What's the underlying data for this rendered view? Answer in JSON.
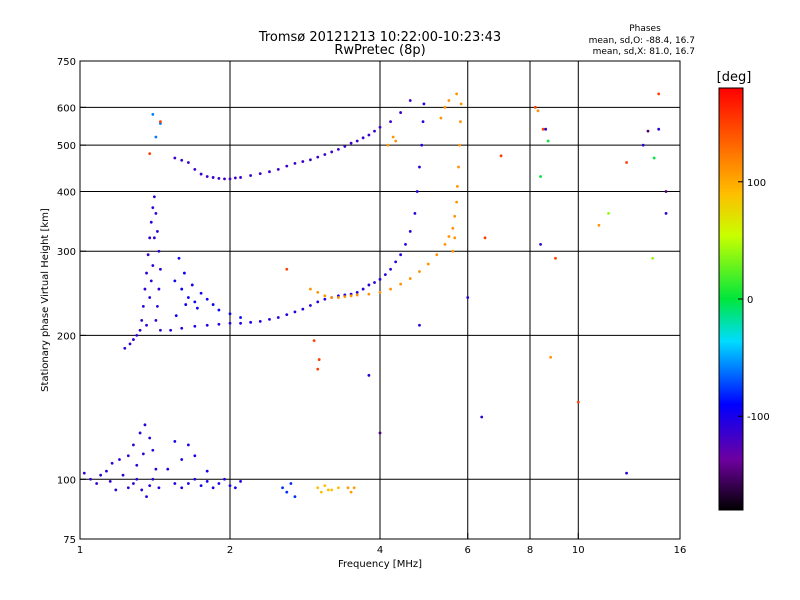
{
  "chart_data": {
    "type": "scatter",
    "title": "Tromsø 20121213 10:22:00-10:23:43",
    "subtitle": "RwPretec (8p)",
    "xlabel": "Frequency [MHz]",
    "ylabel": "Stationary phase Virtual Height [km]",
    "x_scale": "log",
    "y_scale": "log",
    "xlim": [
      1,
      16
    ],
    "ylim": [
      75,
      750
    ],
    "x_ticks": [
      1,
      2,
      4,
      6,
      8,
      10,
      16
    ],
    "x_tick_labels": [
      "1",
      "2",
      "4",
      "6",
      "8",
      "10",
      "16"
    ],
    "y_ticks": [
      75,
      100,
      200,
      300,
      400,
      500,
      600,
      750
    ],
    "y_tick_labels": [
      "75",
      "100",
      "200",
      "300",
      "400",
      "500",
      "600",
      "750"
    ],
    "grid": true,
    "legend": {
      "heading": "Phases",
      "line_o": "mean, sd,O: -88.4, 16.7",
      "line_x": "mean, sd,X:  81.0, 16.7"
    },
    "colorbar": {
      "label": "[deg]",
      "range": [
        -180,
        180
      ],
      "ticks": [
        -100,
        0,
        100
      ],
      "tick_labels": [
        "-100",
        "0",
        "100"
      ]
    },
    "series": [
      {
        "points": [
          [
            1.02,
            103
          ],
          [
            1.05,
            100
          ],
          [
            1.08,
            98
          ],
          [
            1.1,
            102
          ],
          [
            1.13,
            104
          ],
          [
            1.16,
            108
          ],
          [
            1.2,
            110
          ],
          [
            1.25,
            112
          ],
          [
            1.28,
            118
          ],
          [
            1.32,
            125
          ],
          [
            1.35,
            130
          ],
          [
            1.38,
            122
          ],
          [
            1.4,
            115
          ],
          [
            1.42,
            105
          ],
          [
            1.44,
            96
          ],
          [
            1.28,
            98
          ],
          [
            1.33,
            95
          ],
          [
            1.36,
            92
          ],
          [
            1.3,
            100
          ],
          [
            1.25,
            96
          ],
          [
            1.18,
            95
          ],
          [
            1.22,
            102
          ],
          [
            1.15,
            99
          ],
          [
            1.4,
            100
          ],
          [
            1.38,
            97
          ],
          [
            1.3,
            107
          ],
          [
            1.34,
            113
          ]
        ],
        "phase": -110
      },
      {
        "points": [
          [
            1.23,
            188
          ],
          [
            1.26,
            192
          ],
          [
            1.28,
            196
          ],
          [
            1.3,
            200
          ],
          [
            1.32,
            205
          ],
          [
            1.33,
            215
          ],
          [
            1.34,
            230
          ],
          [
            1.35,
            250
          ],
          [
            1.36,
            270
          ],
          [
            1.37,
            295
          ],
          [
            1.38,
            320
          ],
          [
            1.39,
            345
          ],
          [
            1.4,
            370
          ],
          [
            1.41,
            390
          ],
          [
            1.42,
            360
          ],
          [
            1.43,
            330
          ],
          [
            1.44,
            300
          ],
          [
            1.45,
            275
          ],
          [
            1.44,
            250
          ],
          [
            1.43,
            230
          ],
          [
            1.42,
            215
          ],
          [
            1.45,
            205
          ],
          [
            1.38,
            240
          ],
          [
            1.36,
            210
          ],
          [
            1.4,
            280
          ],
          [
            1.41,
            320
          ],
          [
            1.39,
            260
          ]
        ],
        "phase": -110
      },
      {
        "points": [
          [
            1.55,
            470
          ],
          [
            1.6,
            465
          ],
          [
            1.65,
            460
          ],
          [
            1.7,
            445
          ],
          [
            1.75,
            435
          ],
          [
            1.8,
            430
          ],
          [
            1.85,
            428
          ],
          [
            1.9,
            426
          ],
          [
            1.95,
            425
          ],
          [
            2.0,
            425
          ],
          [
            2.05,
            427
          ],
          [
            2.1,
            428
          ],
          [
            2.2,
            432
          ],
          [
            2.3,
            436
          ],
          [
            2.4,
            440
          ],
          [
            2.5,
            445
          ],
          [
            2.6,
            452
          ],
          [
            2.7,
            458
          ],
          [
            2.8,
            462
          ],
          [
            2.9,
            466
          ],
          [
            3.0,
            472
          ],
          [
            3.1,
            478
          ],
          [
            3.2,
            484
          ],
          [
            3.3,
            490
          ],
          [
            3.4,
            497
          ],
          [
            3.5,
            505
          ],
          [
            3.6,
            510
          ],
          [
            3.7,
            518
          ],
          [
            3.8,
            525
          ],
          [
            3.9,
            535
          ],
          [
            4.0,
            545
          ],
          [
            4.2,
            560
          ],
          [
            4.4,
            585
          ],
          [
            4.6,
            620
          ]
        ],
        "phase": -115
      },
      {
        "points": [
          [
            1.52,
            205
          ],
          [
            1.6,
            207
          ],
          [
            1.7,
            209
          ],
          [
            1.8,
            210
          ],
          [
            1.9,
            211
          ],
          [
            2.0,
            212
          ],
          [
            2.1,
            212
          ],
          [
            2.2,
            213
          ],
          [
            2.3,
            214
          ],
          [
            2.4,
            216
          ],
          [
            2.5,
            218
          ],
          [
            2.6,
            221
          ],
          [
            2.7,
            224
          ],
          [
            2.8,
            227
          ],
          [
            2.9,
            231
          ],
          [
            3.0,
            235
          ],
          [
            3.1,
            238
          ],
          [
            3.2,
            240
          ],
          [
            3.3,
            242
          ],
          [
            3.4,
            243
          ],
          [
            3.5,
            244
          ],
          [
            3.6,
            246
          ],
          [
            3.7,
            250
          ],
          [
            3.8,
            255
          ],
          [
            3.9,
            258
          ],
          [
            4.0,
            262
          ],
          [
            4.1,
            268
          ],
          [
            4.2,
            275
          ],
          [
            4.3,
            285
          ],
          [
            4.4,
            295
          ],
          [
            4.5,
            310
          ],
          [
            4.6,
            330
          ],
          [
            4.7,
            360
          ],
          [
            4.75,
            400
          ],
          [
            4.8,
            450
          ],
          [
            4.85,
            500
          ],
          [
            4.88,
            560
          ],
          [
            4.9,
            610
          ]
        ],
        "phase": -105
      },
      {
        "points": [
          [
            1.55,
            260
          ],
          [
            1.6,
            250
          ],
          [
            1.65,
            240
          ],
          [
            1.7,
            235
          ],
          [
            1.75,
            245
          ],
          [
            1.8,
            238
          ],
          [
            1.85,
            232
          ],
          [
            1.9,
            226
          ],
          [
            2.0,
            222
          ],
          [
            1.58,
            290
          ],
          [
            1.62,
            270
          ],
          [
            1.68,
            255
          ],
          [
            1.72,
            228
          ],
          [
            2.1,
            218
          ],
          [
            1.56,
            220
          ],
          [
            1.63,
            232
          ]
        ],
        "phase": -95
      },
      {
        "points": [
          [
            1.5,
            105
          ],
          [
            1.55,
            98
          ],
          [
            1.6,
            96
          ],
          [
            1.65,
            98
          ],
          [
            1.7,
            100
          ],
          [
            1.75,
            97
          ],
          [
            1.8,
            99
          ],
          [
            1.85,
            96
          ],
          [
            1.9,
            98
          ],
          [
            1.95,
            100
          ],
          [
            2.0,
            97
          ],
          [
            2.05,
            96
          ],
          [
            2.1,
            99
          ],
          [
            1.6,
            110
          ],
          [
            1.7,
            112
          ],
          [
            1.55,
            120
          ],
          [
            1.65,
            118
          ],
          [
            1.8,
            104
          ]
        ],
        "phase": -100
      },
      {
        "points": [
          [
            2.55,
            96
          ],
          [
            2.6,
            94
          ],
          [
            2.7,
            92
          ],
          [
            2.65,
            98
          ]
        ],
        "phase": -80
      },
      {
        "points": [
          [
            2.9,
            250
          ],
          [
            3.0,
            246
          ],
          [
            3.1,
            242
          ],
          [
            3.2,
            240
          ],
          [
            3.3,
            240
          ],
          [
            3.4,
            241
          ],
          [
            3.5,
            242
          ],
          [
            3.6,
            243
          ],
          [
            3.8,
            244
          ],
          [
            4.0,
            246
          ],
          [
            4.2,
            250
          ],
          [
            4.4,
            256
          ],
          [
            4.6,
            263
          ],
          [
            4.8,
            272
          ],
          [
            5.0,
            282
          ],
          [
            5.2,
            295
          ],
          [
            5.4,
            310
          ],
          [
            5.5,
            322
          ],
          [
            5.6,
            335
          ],
          [
            5.65,
            355
          ],
          [
            5.7,
            380
          ],
          [
            5.72,
            410
          ],
          [
            5.75,
            450
          ],
          [
            5.78,
            500
          ],
          [
            5.8,
            560
          ],
          [
            5.82,
            610
          ],
          [
            5.7,
            640
          ],
          [
            5.5,
            620
          ],
          [
            5.4,
            600
          ],
          [
            5.3,
            570
          ],
          [
            5.6,
            300
          ],
          [
            5.65,
            320
          ]
        ],
        "phase": 110
      },
      {
        "points": [
          [
            3.0,
            96
          ],
          [
            3.05,
            94
          ],
          [
            3.1,
            97
          ],
          [
            3.15,
            95
          ],
          [
            3.2,
            95
          ],
          [
            3.3,
            96
          ]
        ],
        "phase": 90
      },
      {
        "points": [
          [
            3.45,
            96
          ],
          [
            3.5,
            94
          ],
          [
            3.55,
            96
          ]
        ],
        "phase": 105
      },
      {
        "points": [
          [
            4.15,
            500
          ],
          [
            4.25,
            520
          ],
          [
            4.3,
            510
          ]
        ],
        "phase": 110
      },
      {
        "points": [
          [
            1.4,
            580
          ],
          [
            1.42,
            520
          ],
          [
            1.45,
            555
          ]
        ],
        "phase": -60
      },
      {
        "points": [
          [
            1.45,
            560
          ],
          [
            1.38,
            480
          ],
          [
            2.6,
            275
          ],
          [
            2.95,
            195
          ],
          [
            3.0,
            170
          ],
          [
            3.02,
            178
          ],
          [
            8.2,
            600
          ],
          [
            8.5,
            540
          ],
          [
            9.0,
            290
          ],
          [
            12.5,
            460
          ],
          [
            14.5,
            640
          ],
          [
            10.0,
            145
          ],
          [
            7.0,
            475
          ],
          [
            6.5,
            320
          ]
        ],
        "phase": 150
      },
      {
        "points": [
          [
            8.3,
            590
          ],
          [
            8.8,
            180
          ],
          [
            11,
            340
          ]
        ],
        "phase": 110
      },
      {
        "points": [
          [
            11.5,
            360
          ],
          [
            14.1,
            290
          ]
        ],
        "phase": 40
      },
      {
        "points": [
          [
            8.4,
            310
          ],
          [
            8.6,
            540
          ],
          [
            13.5,
            500
          ],
          [
            14.5,
            540
          ],
          [
            15.0,
            360
          ],
          [
            3.8,
            165
          ],
          [
            6.4,
            135
          ],
          [
            12.5,
            103
          ],
          [
            4.8,
            210
          ],
          [
            6.0,
            240
          ]
        ],
        "phase": -110
      },
      {
        "points": [
          [
            4.0,
            125
          ],
          [
            15.0,
            400
          ],
          [
            13.8,
            535
          ]
        ],
        "phase": -150
      },
      {
        "points": [
          [
            8.4,
            430
          ],
          [
            8.7,
            510
          ],
          [
            14.2,
            470
          ]
        ],
        "phase": 0
      }
    ]
  }
}
